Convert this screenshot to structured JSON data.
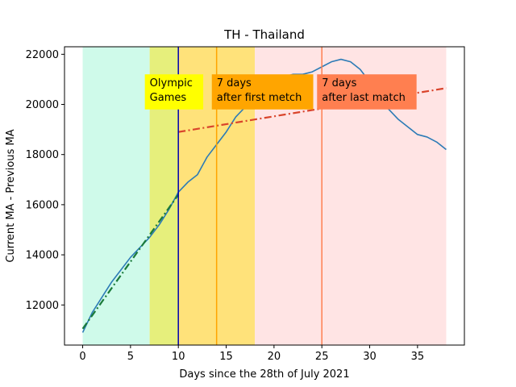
{
  "chart_data": {
    "type": "line",
    "title": "TH - Thailand",
    "xlabel": "Days since the 28th of July 2021",
    "ylabel": "Current MA - Previous MA",
    "xlim": [
      -1.9,
      39.9
    ],
    "ylim": [
      10400,
      22300
    ],
    "x_ticks": [
      0,
      5,
      10,
      15,
      20,
      25,
      30,
      35
    ],
    "y_ticks": [
      12000,
      14000,
      16000,
      18000,
      20000,
      22000
    ],
    "grid": false,
    "legend": "none",
    "regions": [
      {
        "x0": 0,
        "x1": 7,
        "color": "#cffaea"
      },
      {
        "x0": 7,
        "x1": 10,
        "color": "#e6ef7c"
      },
      {
        "x0": 10,
        "x1": 18,
        "color": "#ffe27a"
      },
      {
        "x0": 18,
        "x1": 38,
        "color": "#ffe4e4"
      }
    ],
    "vlines": [
      {
        "x": 10,
        "color": "#0000b0"
      },
      {
        "x": 14,
        "color": "#ffa500"
      },
      {
        "x": 25,
        "color": "#ff7f50"
      }
    ],
    "annotations": [
      {
        "lines": [
          "Olympic",
          "Games"
        ],
        "x": 6.5,
        "y_top": 21200,
        "y_bottom": 19800,
        "width_days": 6.1,
        "bg": "#ffff00"
      },
      {
        "lines": [
          "7 days",
          "after first metch"
        ],
        "x": 13.5,
        "y_top": 21200,
        "y_bottom": 19800,
        "width_days": 10.6,
        "bg": "#ffa500"
      },
      {
        "lines": [
          "7 days",
          "after last match"
        ],
        "x": 24.5,
        "y_top": 21200,
        "y_bottom": 19800,
        "width_days": 10.4,
        "bg": "#ff7f50"
      }
    ],
    "series": [
      {
        "style": "solid",
        "color": "#2c7bb6",
        "x": [
          0,
          1,
          2,
          3,
          4,
          5,
          6,
          7,
          8,
          9,
          10,
          11,
          12,
          13,
          14,
          15,
          16,
          17,
          18,
          19,
          20,
          21,
          22,
          23,
          24,
          25,
          26,
          27,
          28,
          29,
          30,
          31,
          32,
          33,
          34,
          35,
          36,
          37,
          38
        ],
        "y": [
          10900,
          11700,
          12300,
          12900,
          13400,
          13900,
          14300,
          14700,
          15200,
          15800,
          16500,
          16900,
          17200,
          17900,
          18400,
          18900,
          19500,
          19900,
          20300,
          20700,
          20900,
          21100,
          21200,
          21200,
          21300,
          21500,
          21700,
          21800,
          21700,
          21400,
          20900,
          20300,
          19800,
          19400,
          19100,
          18800,
          18700,
          18500,
          18200
        ]
      },
      {
        "style": "dashdot",
        "color": "#1a7a3a",
        "x": [
          0,
          10
        ],
        "y": [
          11050,
          16400
        ]
      },
      {
        "style": "dashdot",
        "color": "#d9442b",
        "x": [
          10,
          38
        ],
        "y": [
          18900,
          20650
        ]
      }
    ]
  }
}
